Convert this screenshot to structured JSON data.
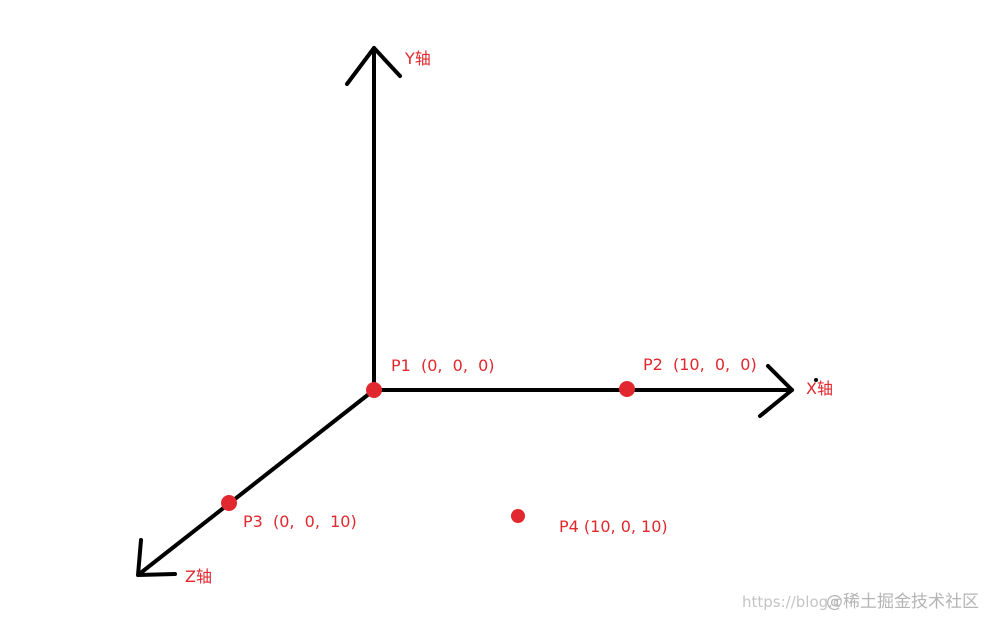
{
  "axes": {
    "y_label": "Y轴",
    "x_label": "X轴",
    "z_label": "Z轴"
  },
  "points": [
    {
      "name": "P1",
      "label": "P1  (0,  0,  0)",
      "coords": [
        0,
        0,
        0
      ]
    },
    {
      "name": "P2",
      "label": "P2  (10,  0,  0)",
      "coords": [
        10,
        0,
        0
      ]
    },
    {
      "name": "P3",
      "label": "P3  (0,  0,  10)",
      "coords": [
        0,
        0,
        10
      ]
    },
    {
      "name": "P4",
      "label": "P4 (10, 0, 10)",
      "coords": [
        10,
        0,
        10
      ]
    }
  ],
  "colors": {
    "axis": "#000000",
    "point": "#e0282e",
    "label": "#e0282e"
  },
  "watermark": {
    "url": "https://blog.c",
    "text": "@稀土掘金技术社区"
  }
}
